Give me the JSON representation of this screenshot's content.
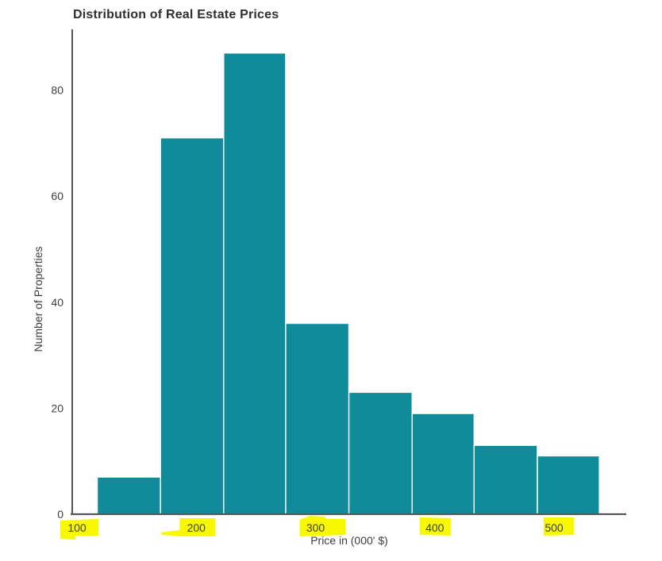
{
  "chart_data": {
    "type": "bar",
    "subtype": "histogram",
    "title": "Distribution of Real Estate Prices",
    "xlabel": "Price in (000' $)",
    "ylabel": "Number of Properties",
    "bin_edges": [
      117,
      170,
      223,
      275,
      328,
      381,
      433,
      486,
      538
    ],
    "counts": [
      7,
      71,
      87,
      36,
      23,
      19,
      13,
      11
    ],
    "x_ticks": [
      "100",
      "200",
      "300",
      "400",
      "500"
    ],
    "x_tick_values": [
      100,
      200,
      300,
      400,
      500
    ],
    "y_ticks": [
      "0",
      "20",
      "40",
      "60",
      "80"
    ],
    "y_tick_values": [
      0,
      20,
      40,
      60,
      80
    ],
    "xlim": [
      87,
      560
    ],
    "ylim": [
      0,
      91.5
    ],
    "grid": false,
    "legend": false,
    "highlighted_x_ticks": [
      "100",
      "200",
      "300",
      "400",
      "500"
    ],
    "colors": {
      "bar_fill": "#108B99",
      "bar_edge": "#FFFFFF",
      "axis": "#555555",
      "tick_text": "#3D3D3D",
      "title_text": "#2F2F2F",
      "highlight": "#F8F800"
    }
  }
}
